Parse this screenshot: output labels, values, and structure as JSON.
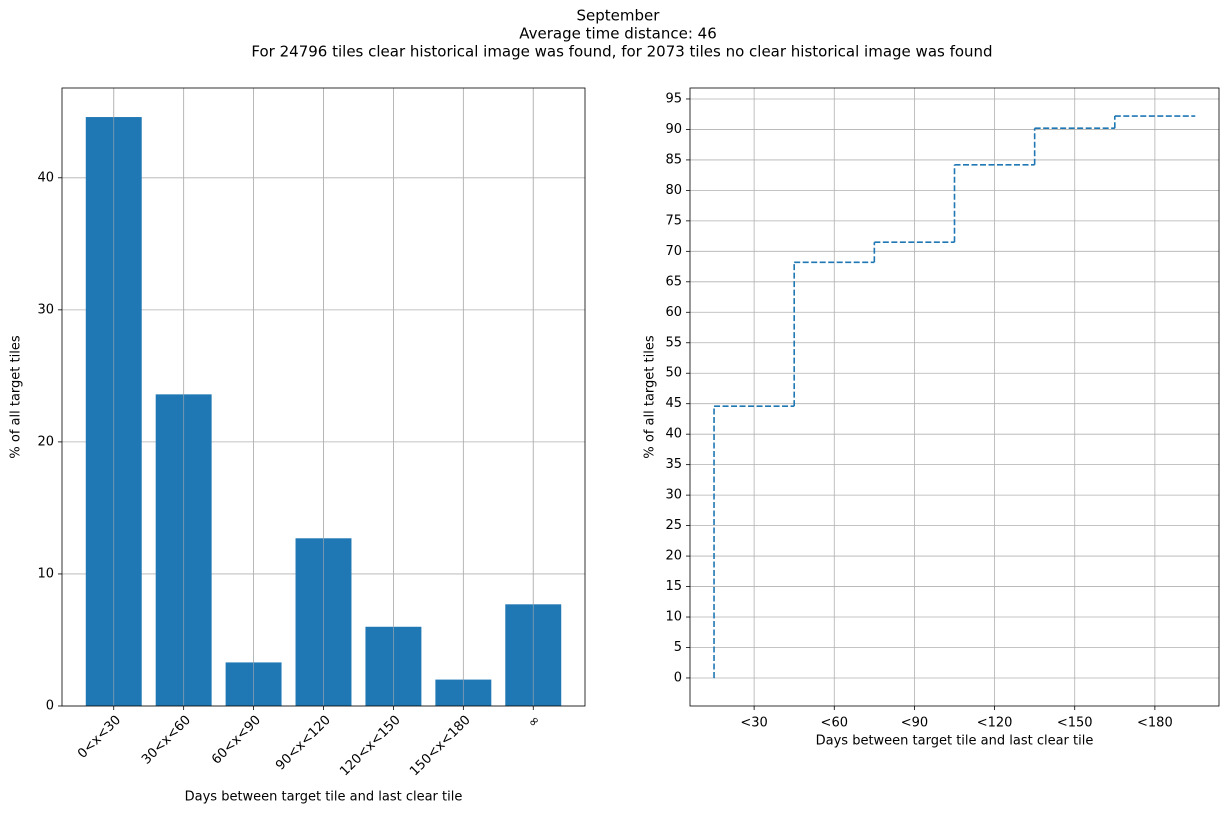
{
  "title": [
    "September",
    "Average time distance: 46",
    "For 24796 tiles clear historical image was found, for 2073 tiles no clear historical image was found"
  ],
  "chart_data": [
    {
      "type": "bar",
      "xlabel": "Days between target tile and last clear tile",
      "ylabel": "% of all target tiles",
      "categories": [
        "0<x<30",
        "30<x<60",
        "60<x<90",
        "90<x<120",
        "120<x<150",
        "150<x<180",
        "∞"
      ],
      "values": [
        44.6,
        23.6,
        3.3,
        12.7,
        6.0,
        2.0,
        7.7
      ],
      "color": "#1f77b4",
      "ylim": [
        0,
        46.8
      ],
      "yticks": [
        0,
        10,
        20,
        30,
        40
      ],
      "grid": true
    },
    {
      "type": "line",
      "drawstyle": "steps-post",
      "linestyle": "dashed",
      "xlabel": "Days between target tile and last clear tile",
      "ylabel": "% of all target tiles",
      "x": [
        15,
        15,
        45,
        75,
        105,
        135,
        165,
        195
      ],
      "values": [
        0,
        44.6,
        68.2,
        71.5,
        84.2,
        90.2,
        92.2,
        92.2
      ],
      "color": "#1f77b4",
      "xlim": [
        6,
        204
      ],
      "ylim": [
        -4.6,
        96.8
      ],
      "xticks": [
        {
          "value": 30,
          "label": "<30"
        },
        {
          "value": 60,
          "label": "<60"
        },
        {
          "value": 90,
          "label": "<90"
        },
        {
          "value": 120,
          "label": "<120"
        },
        {
          "value": 150,
          "label": "<150"
        },
        {
          "value": 180,
          "label": "<180"
        }
      ],
      "yticks": [
        0,
        5,
        10,
        15,
        20,
        25,
        30,
        35,
        40,
        45,
        50,
        55,
        60,
        65,
        70,
        75,
        80,
        85,
        90,
        95
      ],
      "grid": true
    }
  ]
}
